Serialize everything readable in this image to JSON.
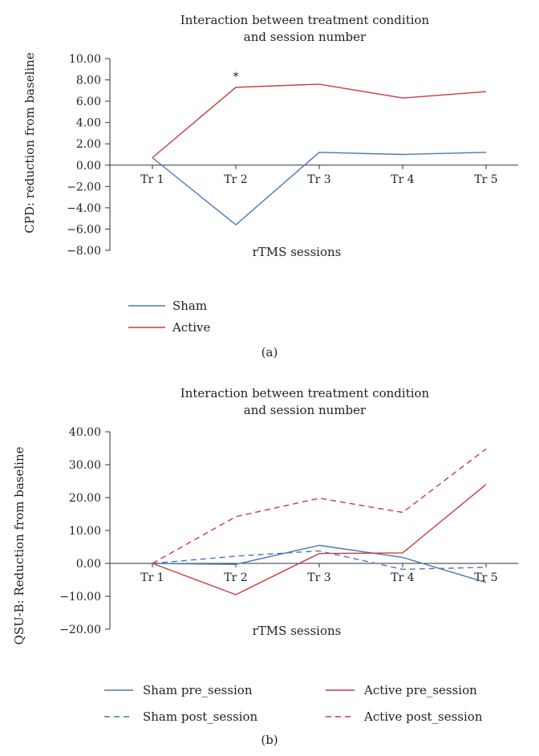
{
  "colors": {
    "sham": "#4a78b8",
    "active": "#c83c3c",
    "axis": "#333333"
  },
  "chart_data": [
    {
      "type": "line",
      "panel": "(a)",
      "title_lines": [
        "Interaction between treatment condition",
        "and session number"
      ],
      "xlabel": "rTMS sessions",
      "ylabel": "CPD: reduction from baseline",
      "categories": [
        "Tr 1",
        "Tr 2",
        "Tr 3",
        "Tr 4",
        "Tr 5"
      ],
      "ylim": [
        -8,
        10
      ],
      "yticks": [
        "10.00",
        "8.00",
        "6.00",
        "4.00",
        "2.00",
        "0.00",
        "−2.00",
        "−4.00",
        "−6.00",
        "−8.00"
      ],
      "series": [
        {
          "name": "Sham",
          "values": [
            0.7,
            -5.6,
            1.2,
            1.0,
            1.2
          ],
          "color": "sham",
          "dash": false
        },
        {
          "name": "Active",
          "values": [
            0.7,
            7.3,
            7.6,
            6.3,
            6.9
          ],
          "color": "active",
          "dash": false
        }
      ],
      "annotations": [
        {
          "text": "*",
          "category": "Tr 2",
          "y": 7.3
        }
      ],
      "legend": "bottom-left"
    },
    {
      "type": "line",
      "panel": "(b)",
      "title_lines": [
        "Interaction between treatment condition",
        "and session number"
      ],
      "xlabel": "rTMS sessions",
      "ylabel": "QSU-B: Reduction from baseline",
      "categories": [
        "Tr 1",
        "Tr 2",
        "Tr 3",
        "Tr 4",
        "Tr 5"
      ],
      "ylim": [
        -20,
        40
      ],
      "yticks": [
        "40.00",
        "30.00",
        "20.00",
        "10.00",
        "0.00",
        "−10.00",
        "−20.00"
      ],
      "series": [
        {
          "name": "Sham pre_session",
          "values": [
            0,
            -0.3,
            5.5,
            1.8,
            -5.8
          ],
          "color": "sham",
          "dash": false
        },
        {
          "name": "Active pre_session",
          "values": [
            0,
            -9.5,
            3.0,
            3.2,
            24.0
          ],
          "color": "active",
          "dash": false
        },
        {
          "name": "Sham post_session",
          "values": [
            0,
            2.2,
            3.8,
            -1.8,
            -1.2
          ],
          "color": "sham",
          "dash": true
        },
        {
          "name": "Active post_session",
          "values": [
            0,
            14.2,
            19.8,
            15.5,
            34.8
          ],
          "color": "active",
          "dash": true
        }
      ],
      "legend": "bottom"
    }
  ]
}
